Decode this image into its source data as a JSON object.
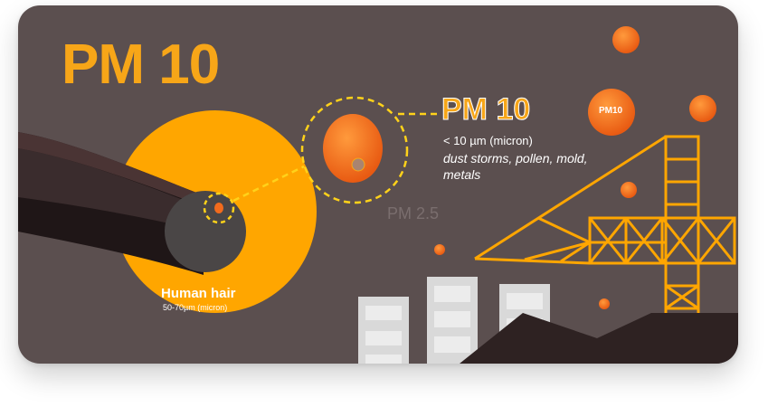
{
  "title": "PM 10",
  "callout": {
    "heading": "PM 10",
    "size": "< 10 µm (micron)",
    "sources": "dust storms, pollen, mold, metals"
  },
  "pm25_label": "PM 2.5",
  "hair": {
    "label": "Human hair",
    "size": "50-70µm (micron)"
  },
  "floating_particle_label": "PM10",
  "colors": {
    "background": "#5b4f4f",
    "accent": "#f7a618",
    "particle": "#f26b1d",
    "hair_dark": "#2a1f1f",
    "building": "#d9d9d9"
  }
}
